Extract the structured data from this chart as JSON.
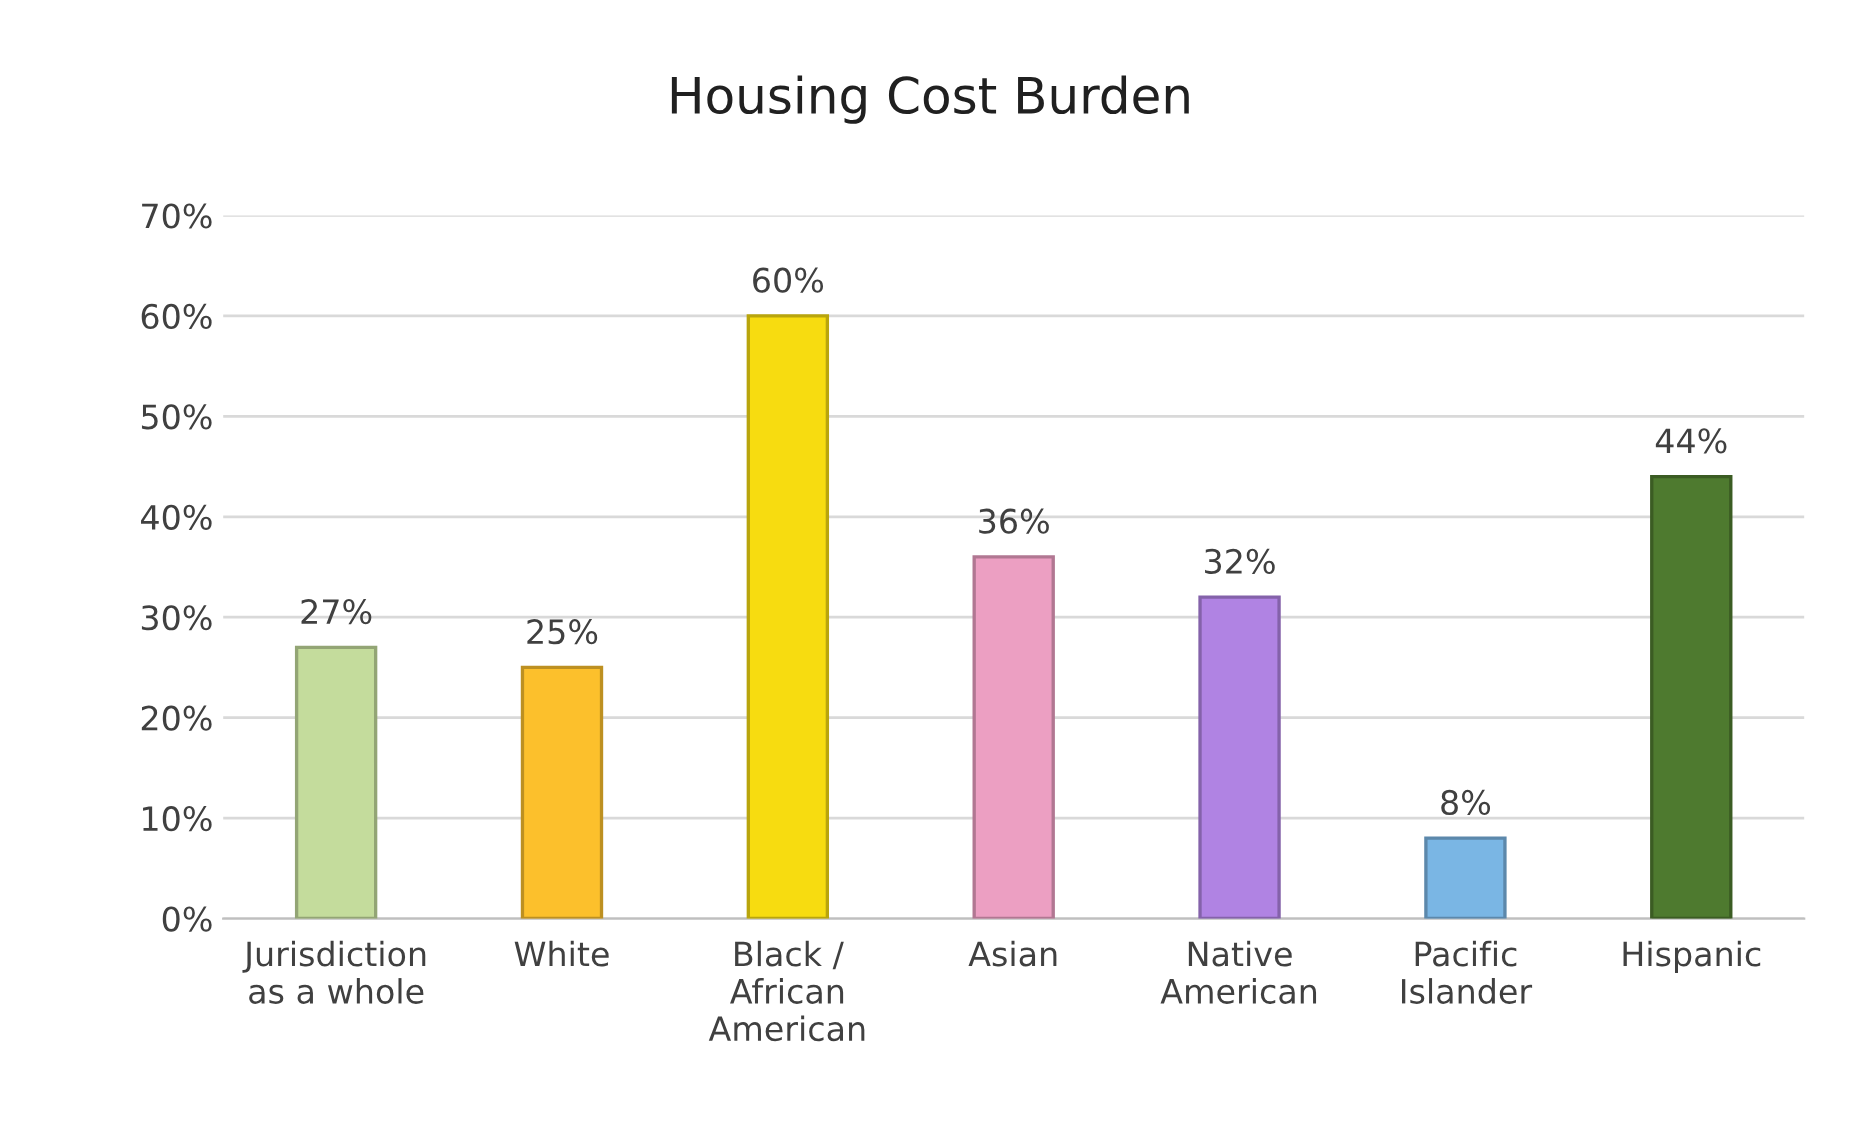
{
  "chart_data": {
    "type": "bar",
    "title": "Housing Cost Burden",
    "categories": [
      "Jurisdiction\nas a whole",
      "White",
      "Black /\nAfrican\nAmerican",
      "Asian",
      "Native\nAmerican",
      "Pacific\nIslander",
      "Hispanic"
    ],
    "values": [
      27,
      25,
      60,
      36,
      32,
      8,
      44
    ],
    "colors": [
      "#c4dc9c",
      "#fcc02c",
      "#f7dc10",
      "#ec9fc2",
      "#b083e3",
      "#7ab6e4",
      "#4e7a2f"
    ],
    "ylim": [
      0,
      70
    ],
    "yticks": [
      {
        "value": 0,
        "label": "0%"
      },
      {
        "value": 10,
        "label": "10%"
      },
      {
        "value": 20,
        "label": "20%"
      },
      {
        "value": 30,
        "label": "30%"
      },
      {
        "value": 40,
        "label": "40%"
      },
      {
        "value": 50,
        "label": "50%"
      },
      {
        "value": 60,
        "label": "60%"
      },
      {
        "value": 70,
        "label": "70%"
      }
    ],
    "value_labels": [
      "27%",
      "25%",
      "60%",
      "36%",
      "32%",
      "8%",
      "44%"
    ],
    "grid": "y",
    "legend": false
  }
}
